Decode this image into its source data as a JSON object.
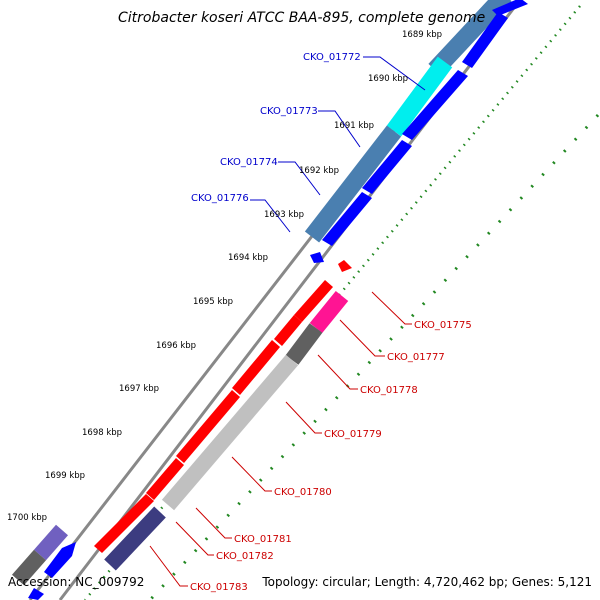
{
  "title": "Citrobacter koseri ATCC BAA-895, complete genome",
  "footer": {
    "accession": "Accession: NC_009792",
    "topology": "Topology: circular; Length: 4,720,462 bp; Genes: 5,121"
  },
  "ticks": [
    "1689 kbp",
    "1690 kbp",
    "1691 kbp",
    "1692 kbp",
    "1693 kbp",
    "1694 kbp",
    "1695 kbp",
    "1696 kbp",
    "1697 kbp",
    "1698 kbp",
    "1699 kbp",
    "1700 kbp"
  ],
  "genes_forward": [
    "CKO_01772",
    "CKO_01773",
    "CKO_01774",
    "CKO_01776"
  ],
  "genes_reverse": [
    "CKO_01775",
    "CKO_01777",
    "CKO_01778",
    "CKO_01779",
    "CKO_01780",
    "CKO_01781",
    "CKO_01782",
    "CKO_01783"
  ],
  "colors": {
    "forward_cds": "#0000ff",
    "reverse_cds": "#ff0000",
    "steelblue": "#4a7fb0",
    "cyan": "#00eeee",
    "grey": "#606060",
    "light_grey": "#c0c0c0",
    "magenta": "#ff1493",
    "navy": "#3c3c80",
    "purple": "#7060c0",
    "tick_dots": "#228822"
  }
}
